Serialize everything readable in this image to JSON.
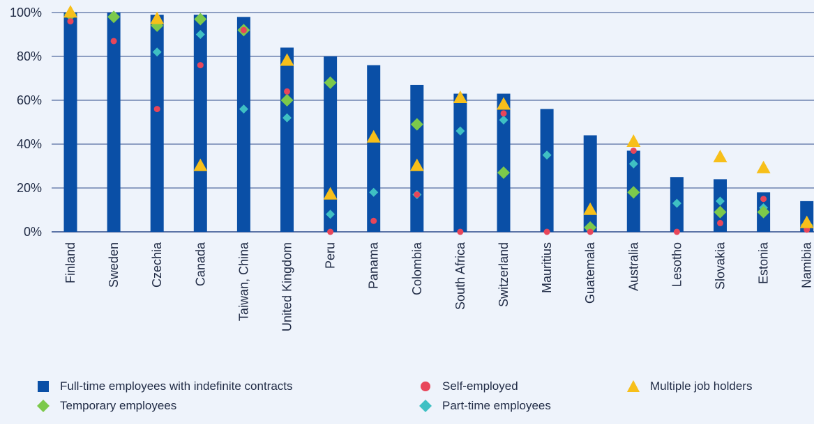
{
  "chart_data": {
    "type": "bar",
    "categories": [
      "Finland",
      "Sweden",
      "Czechia",
      "Canada",
      "Taiwan, China",
      "United Kingdom",
      "Peru",
      "Panama",
      "Colombia",
      "South Africa",
      "Switzerland",
      "Mauritius",
      "Guatemala",
      "Australia",
      "Lesotho",
      "Slovakia",
      "Estonia",
      "Namibia"
    ],
    "yticks": [
      "0%",
      "20%",
      "40%",
      "60%",
      "80%",
      "100%"
    ],
    "ylim": [
      0,
      100
    ],
    "grid": true,
    "legend_position": "bottom",
    "series": [
      {
        "name": "Full-time employees with indefinite contracts",
        "mark": "bar",
        "color": "#0a4fa6",
        "values": [
          100,
          100,
          99,
          99,
          98,
          84,
          80,
          76,
          67,
          63,
          63,
          56,
          44,
          37,
          25,
          24,
          18,
          14
        ]
      },
      {
        "name": "Self-employed",
        "mark": "circle",
        "color": "#e8465a",
        "values": [
          96,
          87,
          56,
          76,
          92,
          64,
          0,
          5,
          17,
          0,
          54,
          0,
          0,
          37,
          0,
          4,
          15,
          1
        ]
      },
      {
        "name": "Multiple job holders",
        "mark": "triangle",
        "color": "#f7bf1a",
        "values": [
          100,
          null,
          97,
          30,
          null,
          78,
          17,
          43,
          30,
          61,
          58,
          null,
          10,
          41,
          null,
          34,
          29,
          4
        ]
      },
      {
        "name": "Temporary employees",
        "mark": "diamond",
        "color": "#7cc94b",
        "values": [
          99,
          98,
          94,
          97,
          92,
          60,
          68,
          null,
          49,
          null,
          27,
          null,
          2,
          18,
          null,
          9,
          9,
          3
        ]
      },
      {
        "name": "Part-time employees",
        "mark": "diamond",
        "color": "#3fc0c3",
        "values": [
          null,
          null,
          82,
          90,
          56,
          52,
          8,
          18,
          17,
          46,
          51,
          35,
          1,
          31,
          13,
          14,
          11,
          3
        ]
      }
    ]
  }
}
